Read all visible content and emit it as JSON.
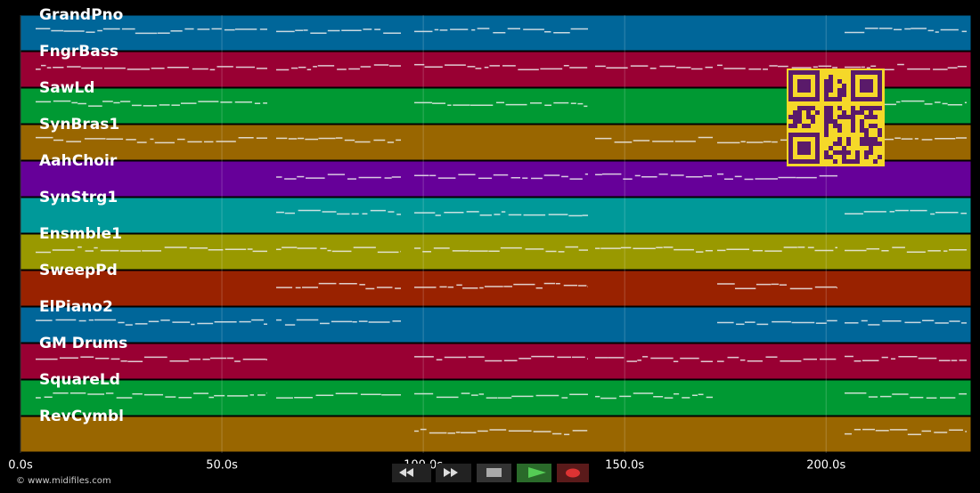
{
  "tracks": [
    {
      "name": "GrandPno",
      "color": "#006699"
    },
    {
      "name": "FngrBass",
      "color": "#990033"
    },
    {
      "name": "SawLd",
      "color": "#009933"
    },
    {
      "name": "SynBras1",
      "color": "#996600"
    },
    {
      "name": "AahChoir",
      "color": "#660099"
    },
    {
      "name": "SynStrg1",
      "color": "#009999"
    },
    {
      "name": "Ensmble1",
      "color": "#999900"
    },
    {
      "name": "SweepPd",
      "color": "#992200"
    },
    {
      "name": "ElPiano2",
      "color": "#006699"
    },
    {
      "name": "GM Drums",
      "color": "#990033"
    },
    {
      "name": "SquareLd",
      "color": "#009933"
    },
    {
      "name": "RevCymbl",
      "color": "#996600"
    }
  ],
  "time_axis": {
    "min": 0,
    "max": 236,
    "ticks": [
      {
        "value": 0,
        "label": "0.0s"
      },
      {
        "value": 50,
        "label": "50.0s"
      },
      {
        "value": 100,
        "label": "100.0s"
      },
      {
        "value": 150,
        "label": "150.0s"
      },
      {
        "value": 200,
        "label": "200.0s"
      }
    ]
  },
  "footer": "© www.midifiles.com"
}
